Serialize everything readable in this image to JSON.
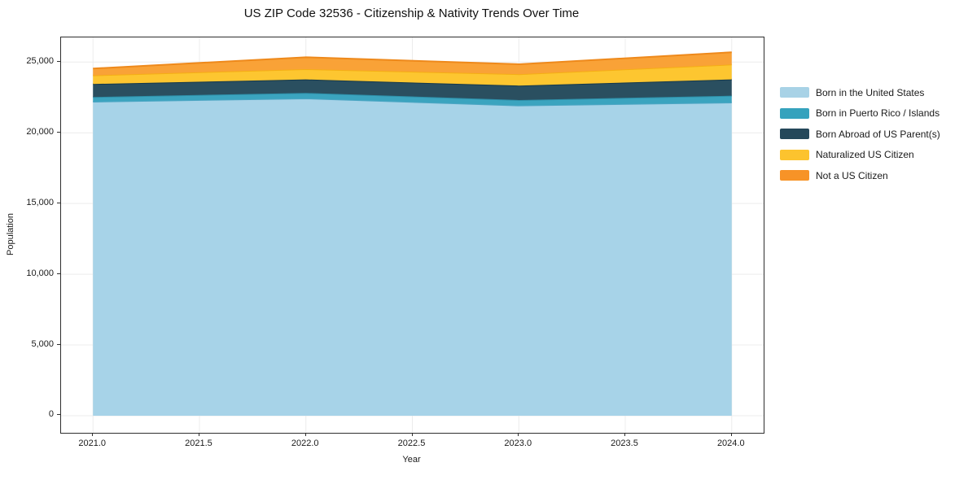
{
  "chart_data": {
    "type": "area",
    "stacked": true,
    "title": "US ZIP Code 32536 - Citizenship & Nativity Trends Over Time",
    "xlabel": "Year",
    "ylabel": "Population",
    "x": [
      2021,
      2022,
      2023,
      2024
    ],
    "series": [
      {
        "name": "Born in the United States",
        "values": [
          22200,
          22430,
          21930,
          22140
        ],
        "fill": "#a7d3e8",
        "edge": "#4ea6c4",
        "swatch": "#a8d2e6"
      },
      {
        "name": "Born in Puerto Rico / Islands",
        "values": [
          330,
          385,
          385,
          480
        ],
        "fill": "#3ba4bf",
        "edge": "#2e8fa8",
        "swatch": "#35a2bd"
      },
      {
        "name": "Born Abroad of US Parent(s)",
        "values": [
          920,
          955,
          1020,
          1150
        ],
        "fill": "#2a4f60",
        "edge": "#16394a",
        "swatch": "#24485a"
      },
      {
        "name": "Naturalized US Citizen",
        "values": [
          610,
          730,
          805,
          1055
        ],
        "fill": "#fdc630",
        "edge": "#f5ae14",
        "swatch": "#fcc32e"
      },
      {
        "name": "Not a US Citizen",
        "values": [
          480,
          840,
          705,
          865
        ],
        "fill": "#f9a237",
        "edge": "#ee891b",
        "swatch": "#f79327"
      }
    ],
    "xlim": [
      2020.85,
      2024.15
    ],
    "ylim": [
      -1208,
      26740
    ],
    "xticks": {
      "values": [
        2021,
        2021.5,
        2022,
        2022.5,
        2023,
        2023.5,
        2024
      ],
      "labels": [
        "2021.0",
        "2021.5",
        "2022.0",
        "2022.5",
        "2023.0",
        "2023.5",
        "2024.0"
      ]
    },
    "yticks": {
      "values": [
        0,
        5000,
        10000,
        15000,
        20000,
        25000
      ],
      "labels": [
        "0",
        "5,000",
        "10,000",
        "15,000",
        "20,000",
        "25,000"
      ]
    },
    "grid": true,
    "grid_color": "#ececec",
    "legend_position": "right-outside"
  }
}
